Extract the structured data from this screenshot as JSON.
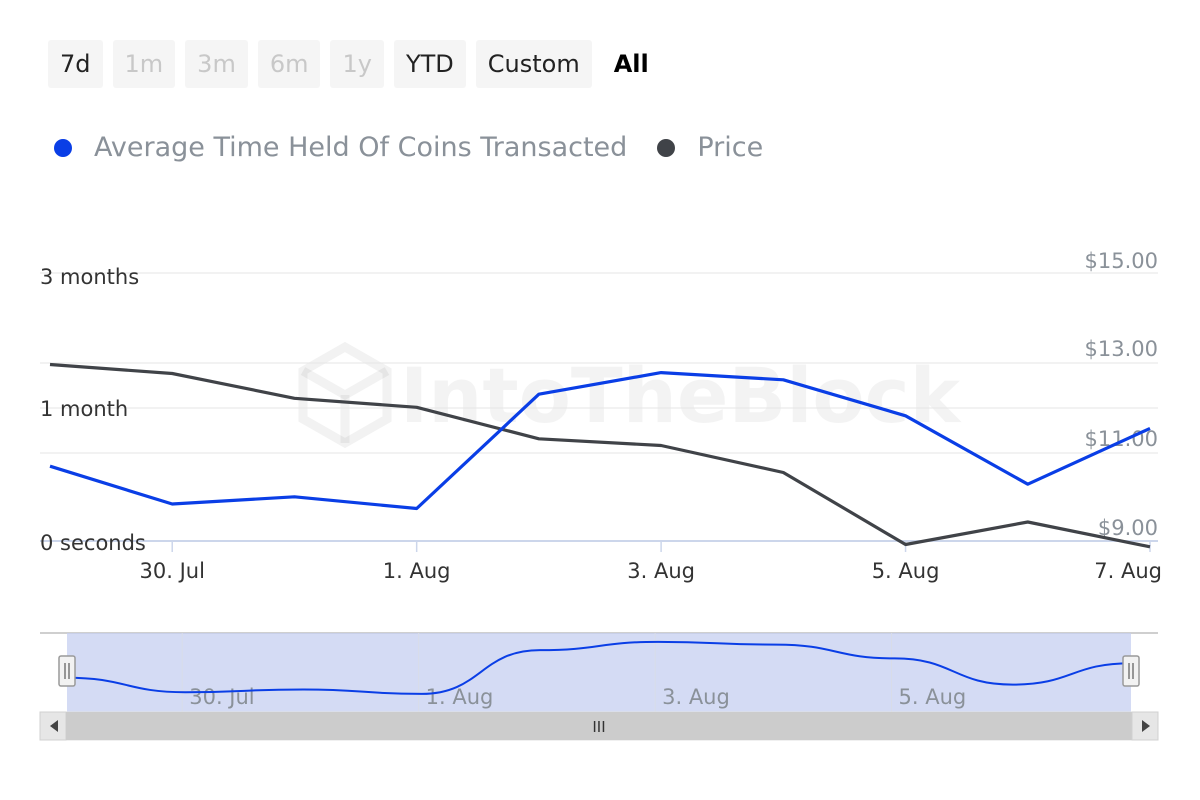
{
  "range_selector": {
    "buttons": [
      {
        "label": "7d",
        "state": "enabled"
      },
      {
        "label": "1m",
        "state": "disabled"
      },
      {
        "label": "3m",
        "state": "disabled"
      },
      {
        "label": "6m",
        "state": "disabled"
      },
      {
        "label": "1y",
        "state": "disabled"
      },
      {
        "label": "YTD",
        "state": "enabled"
      },
      {
        "label": "Custom",
        "state": "enabled"
      },
      {
        "label": "All",
        "state": "selected"
      }
    ]
  },
  "legend": [
    {
      "label": "Average Time Held Of Coins Transacted",
      "color": "#0a3ee6"
    },
    {
      "label": "Price",
      "color": "#404348"
    }
  ],
  "watermark": "IntoTheBlock",
  "colors": {
    "avg_time_series": "#0a3ee6",
    "price_series": "#404348",
    "navigator_mask": "#c5cff0",
    "grid": "#e6e6e6"
  },
  "chart_data": {
    "type": "line",
    "title": "",
    "x": [
      "29 Jul",
      "30 Jul",
      "31 Jul",
      "1 Aug",
      "2 Aug",
      "3 Aug",
      "4 Aug",
      "5 Aug",
      "6 Aug",
      "7 Aug"
    ],
    "x_tick_labels": [
      "30. Jul",
      "1. Aug",
      "3. Aug",
      "5. Aug",
      "7. Aug"
    ],
    "left_axis": {
      "tick_labels": [
        "0 seconds",
        "1 month",
        "3 months"
      ],
      "unit": "months",
      "range": [
        0,
        3
      ]
    },
    "right_axis": {
      "tick_labels": [
        "$9.00",
        "$11.00",
        "$13.00",
        "$15.00"
      ],
      "range": [
        9,
        15
      ]
    },
    "series": [
      {
        "name": "Average Time Held Of Coins Transacted",
        "axis": "left",
        "unit": "months",
        "values": [
          0.82,
          0.4,
          0.48,
          0.35,
          1.62,
          1.86,
          1.78,
          1.38,
          0.62,
          1.24
        ]
      },
      {
        "name": "Price",
        "axis": "right",
        "unit": "USD",
        "values": [
          13.3,
          13.1,
          12.55,
          12.35,
          11.65,
          11.5,
          10.9,
          9.3,
          9.8,
          9.25
        ]
      }
    ],
    "grid": true,
    "legend_position": "top-left",
    "navigator": {
      "x_tick_labels": [
        "30. Jul",
        "1. Aug",
        "3. Aug",
        "5. Aug"
      ],
      "selection": "all",
      "scrollbar_label": "III"
    }
  }
}
